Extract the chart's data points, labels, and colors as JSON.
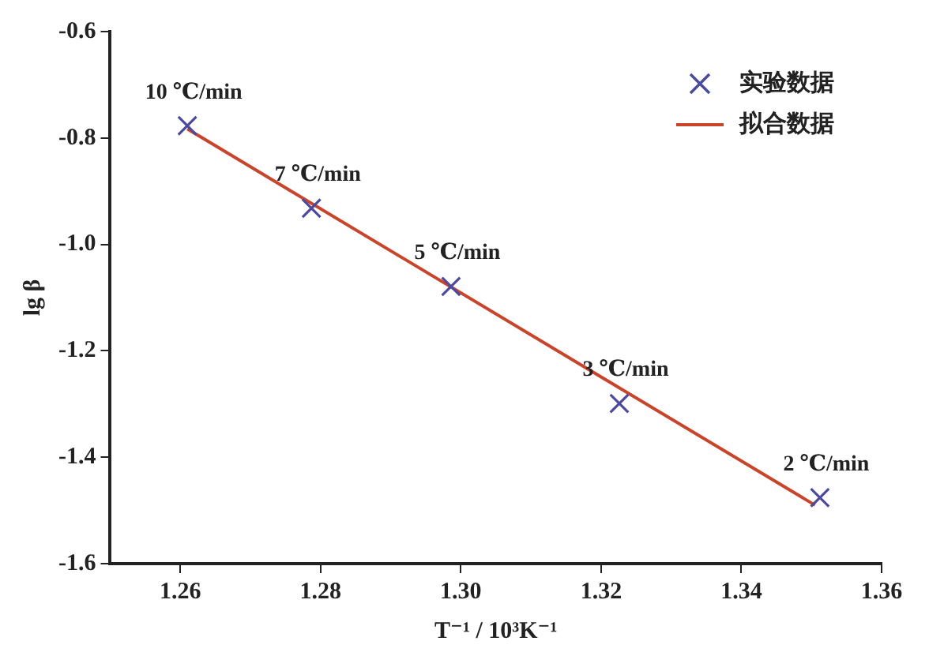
{
  "chart_data": {
    "type": "scatter",
    "xlabel": "T⁻¹ / 10³K⁻¹",
    "ylabel": "lg β",
    "xlim": [
      1.25,
      1.36
    ],
    "xticks": [
      1.26,
      1.28,
      {
        "value": 1.3,
        "label": "1.30"
      },
      1.32,
      1.34,
      1.36
    ],
    "ylim": [
      -1.6,
      -0.6
    ],
    "yticks": [
      -1.6,
      -1.4,
      -1.2,
      {
        "value": -1,
        "label": "-1.0"
      },
      -0.8,
      -0.6
    ],
    "grid": false,
    "legend": "top right",
    "series": [
      {
        "name": "实验数据",
        "type": "scatter",
        "marker": "cross",
        "color": "#4b4a9c",
        "x": [
          1.261,
          1.2787,
          1.2986,
          1.3226,
          1.3512
        ],
        "values": [
          -0.777,
          -0.932,
          -1.079,
          -1.299,
          -1.476
        ]
      },
      {
        "name": "拟合数据",
        "type": "line",
        "marker": "none",
        "color": "#c8442a",
        "line_style": "solid",
        "x": [
          1.261,
          1.3505
        ],
        "values": [
          -0.783,
          -1.49
        ]
      }
    ],
    "annotations": [
      {
        "text": "10 ℃/min",
        "x": 1.261,
        "y": -0.777
      },
      {
        "text": "7 ℃/min",
        "x": 1.2787,
        "y": -0.932
      },
      {
        "text": "5 ℃/min",
        "x": 1.2986,
        "y": -1.079
      },
      {
        "text": "3 ℃/min",
        "x": 1.3226,
        "y": -1.299
      },
      {
        "text": "2 ℃/min",
        "x": 1.3512,
        "y": -1.476
      }
    ]
  }
}
